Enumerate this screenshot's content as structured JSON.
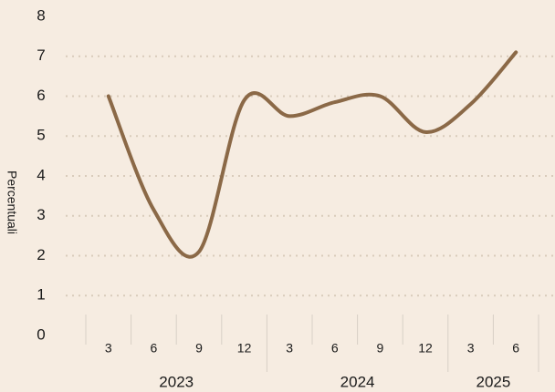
{
  "chart_data": {
    "type": "line",
    "y_label": "Percentuali",
    "categories": [
      "3",
      "6",
      "9",
      "12",
      "3",
      "6",
      "9",
      "12",
      "3",
      "6"
    ],
    "groups": [
      "2023",
      "2023",
      "2023",
      "2023",
      "2024",
      "2024",
      "2024",
      "2024",
      "2025",
      "2025"
    ],
    "series": [
      {
        "name": "Percentuali",
        "color": "#8b6947",
        "values": [
          6.0,
          3.15,
          2.1,
          5.9,
          5.5,
          5.85,
          6.0,
          5.1,
          5.8,
          7.1
        ]
      }
    ],
    "ylim": [
      0,
      8
    ],
    "yticks": [
      0,
      1,
      2,
      3,
      4,
      5,
      6,
      7,
      8
    ],
    "grid": true
  }
}
